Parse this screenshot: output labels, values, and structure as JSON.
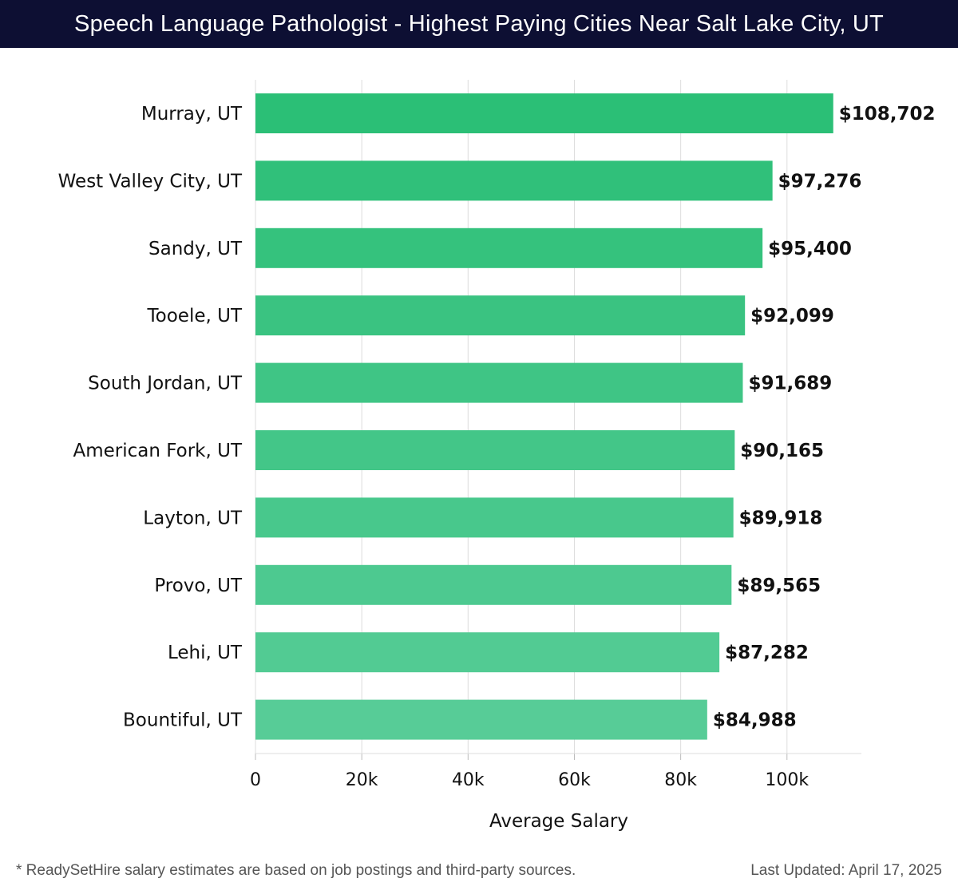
{
  "colors": {
    "title_bg": "#0d0f33",
    "bar_top": "#2bbf76",
    "bar_light": "#57cc97",
    "grid": "#dddddd",
    "text": "#111111"
  },
  "chart_data": {
    "type": "bar",
    "orientation": "horizontal",
    "title": "Speech Language Pathologist - Highest Paying Cities Near Salt Lake City, UT",
    "xlabel": "Average Salary",
    "ylabel": "",
    "xlim": [
      0,
      114000
    ],
    "xticks": [
      0,
      20000,
      40000,
      60000,
      80000,
      100000
    ],
    "xtick_labels": [
      "0",
      "20k",
      "40k",
      "60k",
      "80k",
      "100k"
    ],
    "grid": true,
    "categories": [
      "Murray, UT",
      "West Valley City, UT",
      "Sandy, UT",
      "Tooele, UT",
      "South Jordan, UT",
      "American Fork, UT",
      "Layton, UT",
      "Provo, UT",
      "Lehi, UT",
      "Bountiful, UT"
    ],
    "values": [
      108702,
      97276,
      95400,
      92099,
      91689,
      90165,
      89918,
      89565,
      87282,
      84988
    ],
    "value_labels": [
      "$108,702",
      "$97,276",
      "$95,400",
      "$92,099",
      "$91,689",
      "$90,165",
      "$89,918",
      "$89,565",
      "$87,282",
      "$84,988"
    ]
  },
  "footer": {
    "note": "* ReadySetHire salary estimates are based on job postings and third-party sources.",
    "updated": "Last Updated: April 17, 2025"
  }
}
